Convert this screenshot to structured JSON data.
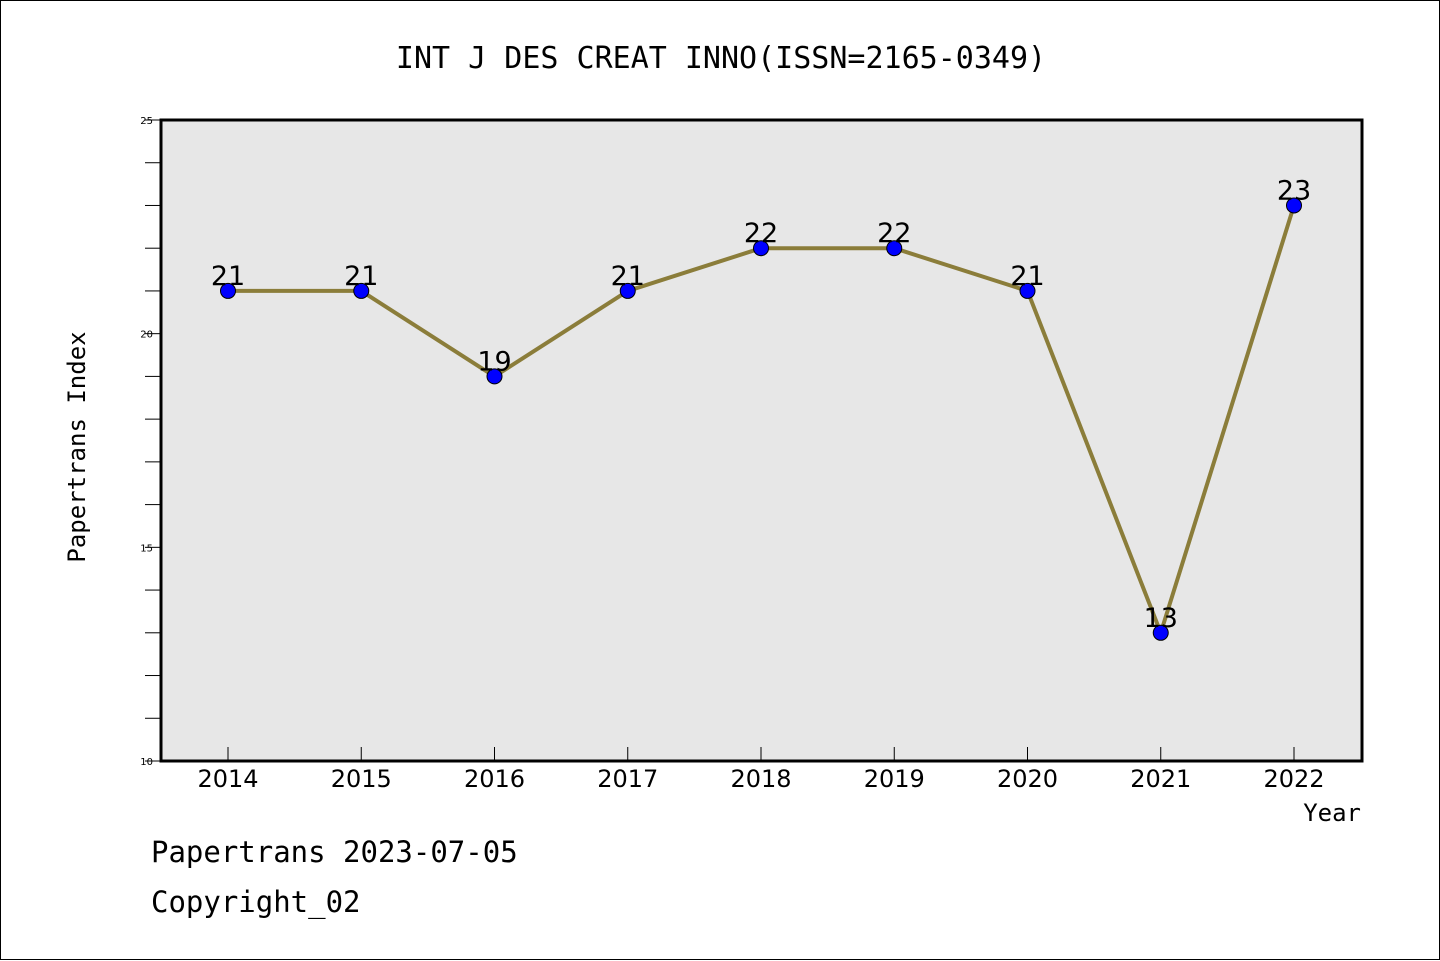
{
  "chart_data": {
    "type": "line",
    "title": "INT J DES CREAT INNO(ISSN=2165-0349)",
    "xlabel": "Year",
    "ylabel": "Papertrans Index",
    "x": [
      "2014",
      "2015",
      "2016",
      "2017",
      "2018",
      "2019",
      "2020",
      "2021",
      "2022"
    ],
    "series": [
      {
        "values": [
          21,
          21,
          19,
          21,
          22,
          22,
          21,
          13,
          23
        ]
      }
    ],
    "data_labels": [
      "21",
      "21",
      "19",
      "21",
      "22",
      "22",
      "21",
      "13",
      "23"
    ],
    "ylim": [
      10,
      25
    ],
    "y_ticks": [
      "10",
      "15",
      "20",
      "25"
    ],
    "grid": false,
    "colors": {
      "line": "#8B7D3A",
      "marker": "#0000FF",
      "plot_background": "#E7E7E7"
    }
  },
  "footer": {
    "line1": "Papertrans 2023-07-05",
    "line2": "Copyright_02"
  }
}
